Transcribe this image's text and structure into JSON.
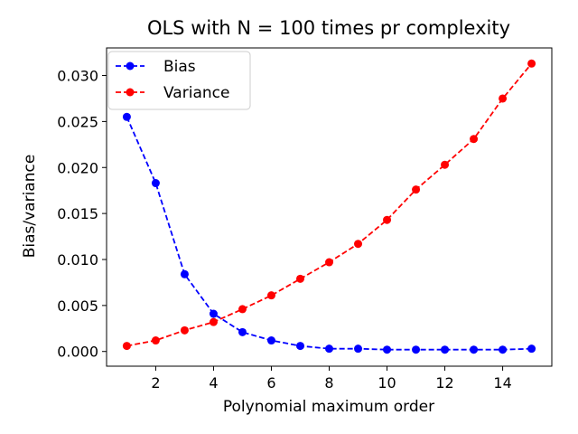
{
  "chart_data": {
    "type": "line",
    "title": "OLS with N = 100 times pr complexity",
    "xlabel": "Polynomial maximum order",
    "ylabel": "Bias/variance",
    "xlim": [
      0.3,
      15.7
    ],
    "ylim": [
      -0.0016,
      0.033
    ],
    "xticks": [
      2,
      4,
      6,
      8,
      10,
      12,
      14
    ],
    "yticks": [
      0.0,
      0.005,
      0.01,
      0.015,
      0.02,
      0.025,
      0.03
    ],
    "ytick_labels": [
      "0.000",
      "0.005",
      "0.010",
      "0.015",
      "0.020",
      "0.025",
      "0.030"
    ],
    "grid": false,
    "legend_position": "upper-left",
    "x": [
      1,
      2,
      3,
      4,
      5,
      6,
      7,
      8,
      9,
      10,
      11,
      12,
      13,
      14,
      15
    ],
    "series": [
      {
        "name": "Bias",
        "color": "#0000ff",
        "line_style": "dashed",
        "marker": "circle",
        "values": [
          0.0255,
          0.0183,
          0.0084,
          0.0041,
          0.0021,
          0.0012,
          0.0006,
          0.0003,
          0.0003,
          0.0002,
          0.0002,
          0.0002,
          0.0002,
          0.0002,
          0.0003
        ]
      },
      {
        "name": "Variance",
        "color": "#ff0000",
        "line_style": "dashed",
        "marker": "circle",
        "values": [
          0.0006,
          0.0012,
          0.0023,
          0.0032,
          0.0046,
          0.0061,
          0.0079,
          0.0097,
          0.0117,
          0.0143,
          0.0176,
          0.0203,
          0.0231,
          0.0275,
          0.0313
        ]
      }
    ]
  }
}
